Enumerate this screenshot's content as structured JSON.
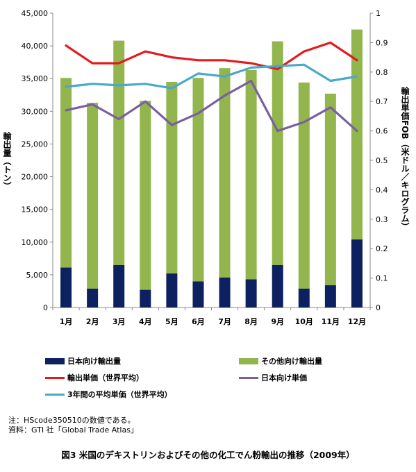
{
  "chart_data": {
    "type": "bar",
    "categories": [
      "1月",
      "2月",
      "3月",
      "4月",
      "5月",
      "6月",
      "7月",
      "8月",
      "9月",
      "10月",
      "11月",
      "12月"
    ],
    "bar_series": [
      {
        "name": "日本向け輸出量",
        "color": "#0d2060",
        "values": [
          6100,
          2900,
          6500,
          2700,
          5200,
          4000,
          4600,
          4300,
          6500,
          2900,
          3400,
          10400
        ]
      },
      {
        "name": "その他向け輸出量",
        "color": "#92b54e",
        "values": [
          29000,
          28400,
          34300,
          28900,
          29300,
          31100,
          32000,
          32000,
          34200,
          31500,
          29300,
          32100
        ]
      }
    ],
    "line_series": [
      {
        "name": "輸出単価（世界平均）",
        "color": "#e41a1c",
        "values": [
          0.89,
          0.83,
          0.83,
          0.87,
          0.85,
          0.84,
          0.84,
          0.83,
          0.81,
          0.87,
          0.9,
          0.84
        ]
      },
      {
        "name": "日本向け単価",
        "color": "#7a5fa0",
        "values": [
          0.67,
          0.69,
          0.64,
          0.7,
          0.62,
          0.66,
          0.72,
          0.77,
          0.6,
          0.63,
          0.68,
          0.6
        ]
      },
      {
        "name": "3年間の平均単価（世界平均）",
        "color": "#4aa9c9",
        "values": [
          0.75,
          0.76,
          0.755,
          0.76,
          0.745,
          0.795,
          0.785,
          0.815,
          0.82,
          0.825,
          0.77,
          0.785
        ]
      }
    ],
    "ylabel_left": "輸出量（トン）",
    "ylabel_right": "輸出単価FOB（米ドル／キログラム）",
    "ylim_left": [
      0,
      45000
    ],
    "ylim_right": [
      0,
      1
    ],
    "yticks_left": [
      "0",
      "5,000",
      "10,000",
      "15,000",
      "20,000",
      "25,000",
      "30,000",
      "35,000",
      "40,000",
      "45,000"
    ],
    "yticks_right": [
      "0",
      "0.1",
      "0.2",
      "0.3",
      "0.4",
      "0.5",
      "0.6",
      "0.7",
      "0.8",
      "0.9",
      "1"
    ],
    "grid": false,
    "legend_position": "bottom"
  },
  "legend": {
    "japan_volume": "日本向け輸出量",
    "other_volume": "その他向け輸出量",
    "world_price": "輸出単価（世界平均）",
    "japan_price": "日本向け単価",
    "avg3y_price": "3年間の平均単価（世界平均）"
  },
  "notes": {
    "line1": "注：HScode350510の数値である。",
    "line2": "資料：GTI 社「Global Trade Atlas」"
  },
  "caption": "図3 米国のデキストリンおよびその他の化工でん粉輸出の推移（2009年）"
}
